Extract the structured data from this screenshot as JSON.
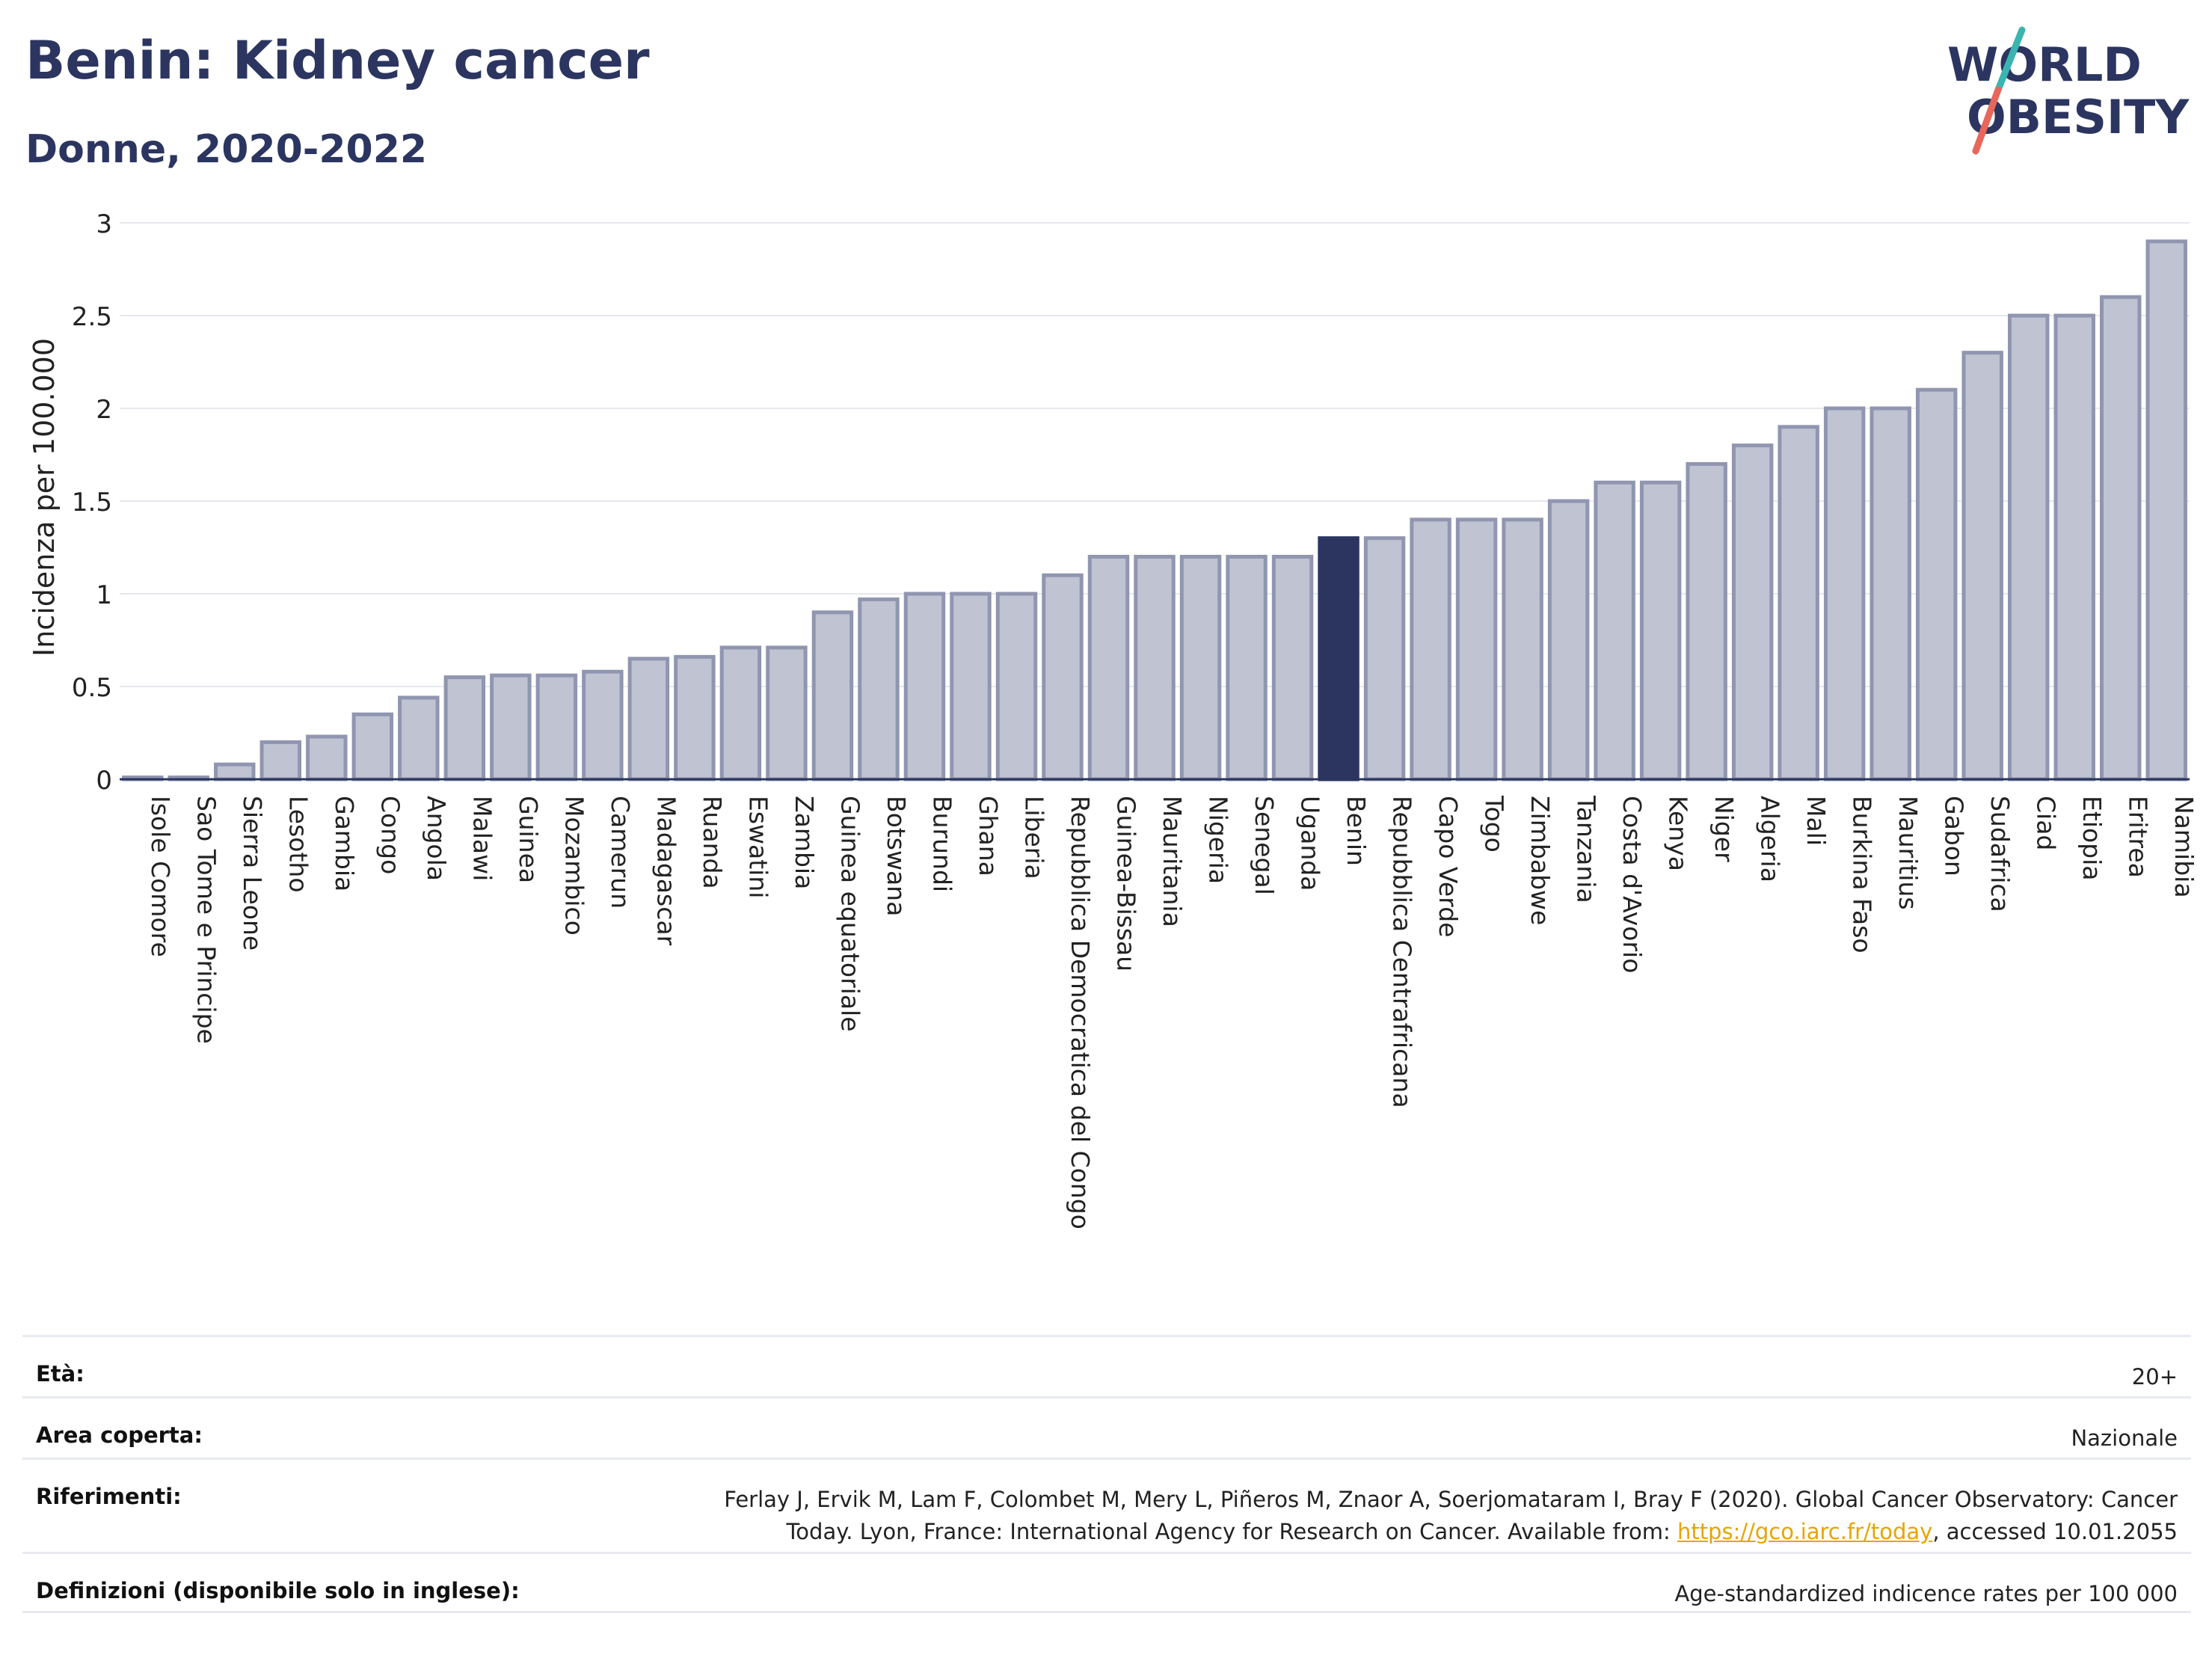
{
  "header": {
    "title": "Benin: Kidney cancer",
    "subtitle": "Donne, 2020-2022"
  },
  "logo": {
    "line1": "WORLD",
    "line2": "OBESITY",
    "colors": {
      "text": "#2b3560",
      "slash_top": "#3ab5b0",
      "slash_bottom": "#e8665a"
    }
  },
  "chart_data": {
    "type": "bar",
    "ylabel": "Incidenza per 100.000",
    "xlabel": "",
    "ylim": [
      0,
      3
    ],
    "yticks": [
      0,
      0.5,
      1,
      1.5,
      2,
      2.5,
      3
    ],
    "ytick_labels": [
      "0",
      "0.5",
      "1",
      "1.5",
      "2",
      "2.5",
      "3"
    ],
    "grid": true,
    "highlight": "Benin",
    "colors": {
      "bar": "#bfc3d2",
      "bar_edge": "#9096b0",
      "highlight": "#2b3560"
    },
    "categories": [
      "Isole Comore",
      "Sao Tome e Principe",
      "Sierra Leone",
      "Lesotho",
      "Gambia",
      "Congo",
      "Angola",
      "Malawi",
      "Guinea",
      "Mozambico",
      "Camerun",
      "Madagascar",
      "Ruanda",
      "Eswatini",
      "Zambia",
      "Guinea equatoriale",
      "Botswana",
      "Burundi",
      "Ghana",
      "Liberia",
      "Repubblica Democratica del Congo",
      "Guinea-Bissau",
      "Mauritania",
      "Nigeria",
      "Senegal",
      "Uganda",
      "Benin",
      "Repubblica Centrafricana",
      "Capo Verde",
      "Togo",
      "Zimbabwe",
      "Tanzania",
      "Costa d'Avorio",
      "Kenya",
      "Niger",
      "Algeria",
      "Mali",
      "Burkina Faso",
      "Mauritius",
      "Gabon",
      "Sudafrica",
      "Ciad",
      "Etiopia",
      "Eritrea",
      "Namibia"
    ],
    "values": [
      0.01,
      0.01,
      0.08,
      0.2,
      0.23,
      0.35,
      0.44,
      0.55,
      0.56,
      0.56,
      0.58,
      0.65,
      0.66,
      0.71,
      0.71,
      0.9,
      0.97,
      1.0,
      1.0,
      1.0,
      1.1,
      1.2,
      1.2,
      1.2,
      1.2,
      1.2,
      1.3,
      1.3,
      1.4,
      1.4,
      1.4,
      1.5,
      1.6,
      1.6,
      1.7,
      1.8,
      1.9,
      2.0,
      2.0,
      2.1,
      2.3,
      2.5,
      2.5,
      2.6,
      2.9
    ]
  },
  "meta": {
    "age_label": "Età:",
    "age_value": "20+",
    "area_label": "Area coperta:",
    "area_value": "Nazionale",
    "ref_label": "Riferimenti:",
    "ref_line1": "Ferlay J, Ervik M, Lam F, Colombet M, Mery L, Piñeros M, Znaor A, Soerjomataram I, Bray F (2020). Global Cancer Observatory: Cancer",
    "ref_line2_pre": "Today. Lyon, France: International Agency for Research on Cancer. Available from: ",
    "ref_link": "https://gco.iarc.fr/today",
    "ref_line2_post": ", accessed 10.01.2055",
    "def_label": "Definizioni (disponibile solo in inglese):",
    "def_value": "Age-standardized indicence rates per 100 000"
  }
}
